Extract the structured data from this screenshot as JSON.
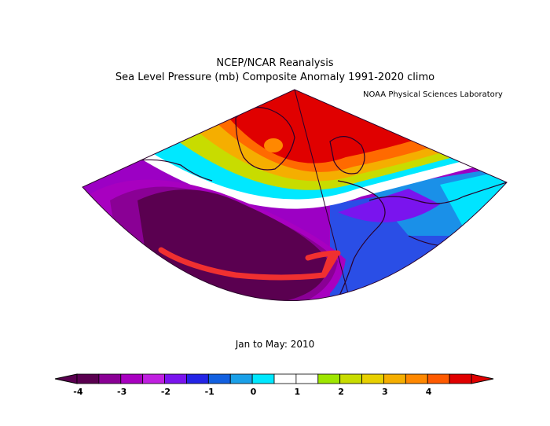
{
  "title_line1": "NCEP/NCAR Reanalysis",
  "title_line2": "Sea Level Pressure (mb) Composite Anomaly 1991-2020 climo",
  "credit": "NOAA Physical Sciences Laboratory",
  "period": "Jan to May: 2010",
  "colorbar": {
    "colors": [
      "#5a0050",
      "#8a0095",
      "#a800c0",
      "#c020e0",
      "#7a14ee",
      "#2424e6",
      "#1260e0",
      "#1aa0e8",
      "#00e8ff",
      "#ffffff",
      "#ffffff",
      "#9ee600",
      "#c8dc00",
      "#e8d000",
      "#f5ae00",
      "#ff8800",
      "#ff5a00",
      "#e00000"
    ],
    "tick_labels": [
      "-4",
      "-3",
      "-2",
      "-1",
      "0",
      "1",
      "2",
      "3",
      "4"
    ]
  }
}
